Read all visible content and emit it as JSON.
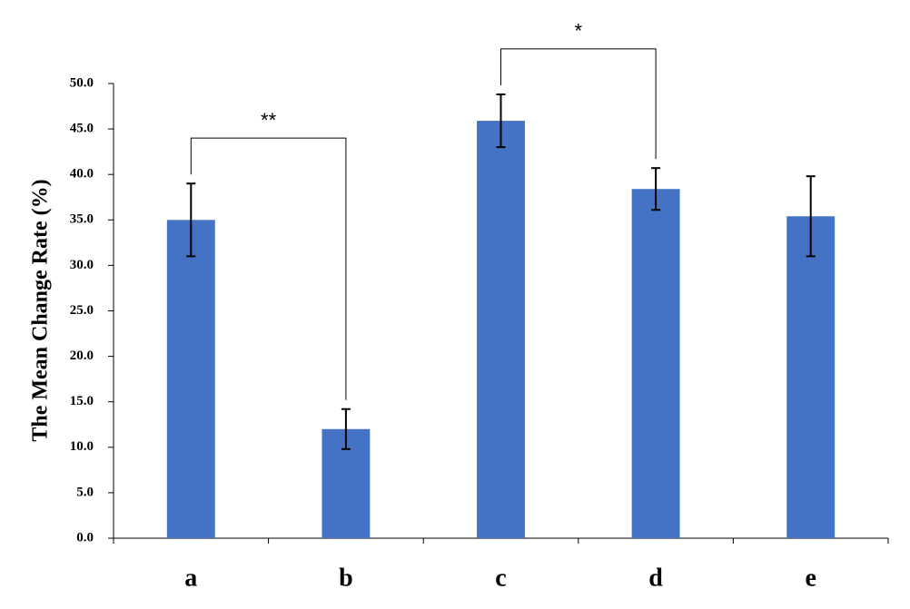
{
  "chart_data": {
    "type": "bar",
    "y_label": "The Mean Change Rate (%)",
    "categories": [
      "a",
      "b",
      "c",
      "d",
      "e"
    ],
    "values": [
      35.0,
      12.0,
      45.9,
      38.4,
      35.4
    ],
    "errors": [
      4.0,
      2.2,
      2.9,
      2.3,
      4.4
    ],
    "color": "#4472c4",
    "ylim": [
      0,
      50
    ],
    "yticks": [
      {
        "value": 0,
        "label": "0.0"
      },
      {
        "value": 5,
        "label": "5.0"
      },
      {
        "value": 10,
        "label": "10.0"
      },
      {
        "value": 15,
        "label": "15.0"
      },
      {
        "value": 20,
        "label": "20.0"
      },
      {
        "value": 25,
        "label": "25.0"
      },
      {
        "value": 30,
        "label": "30.0"
      },
      {
        "value": 35,
        "label": "35.0"
      },
      {
        "value": 40,
        "label": "40.0"
      },
      {
        "value": 45,
        "label": "45.0"
      },
      {
        "value": 50,
        "label": "50.0"
      }
    ],
    "grid": false,
    "annotations": [
      {
        "text": "**",
        "between": [
          0,
          1
        ]
      },
      {
        "text": "*",
        "between": [
          2,
          3
        ]
      }
    ]
  }
}
